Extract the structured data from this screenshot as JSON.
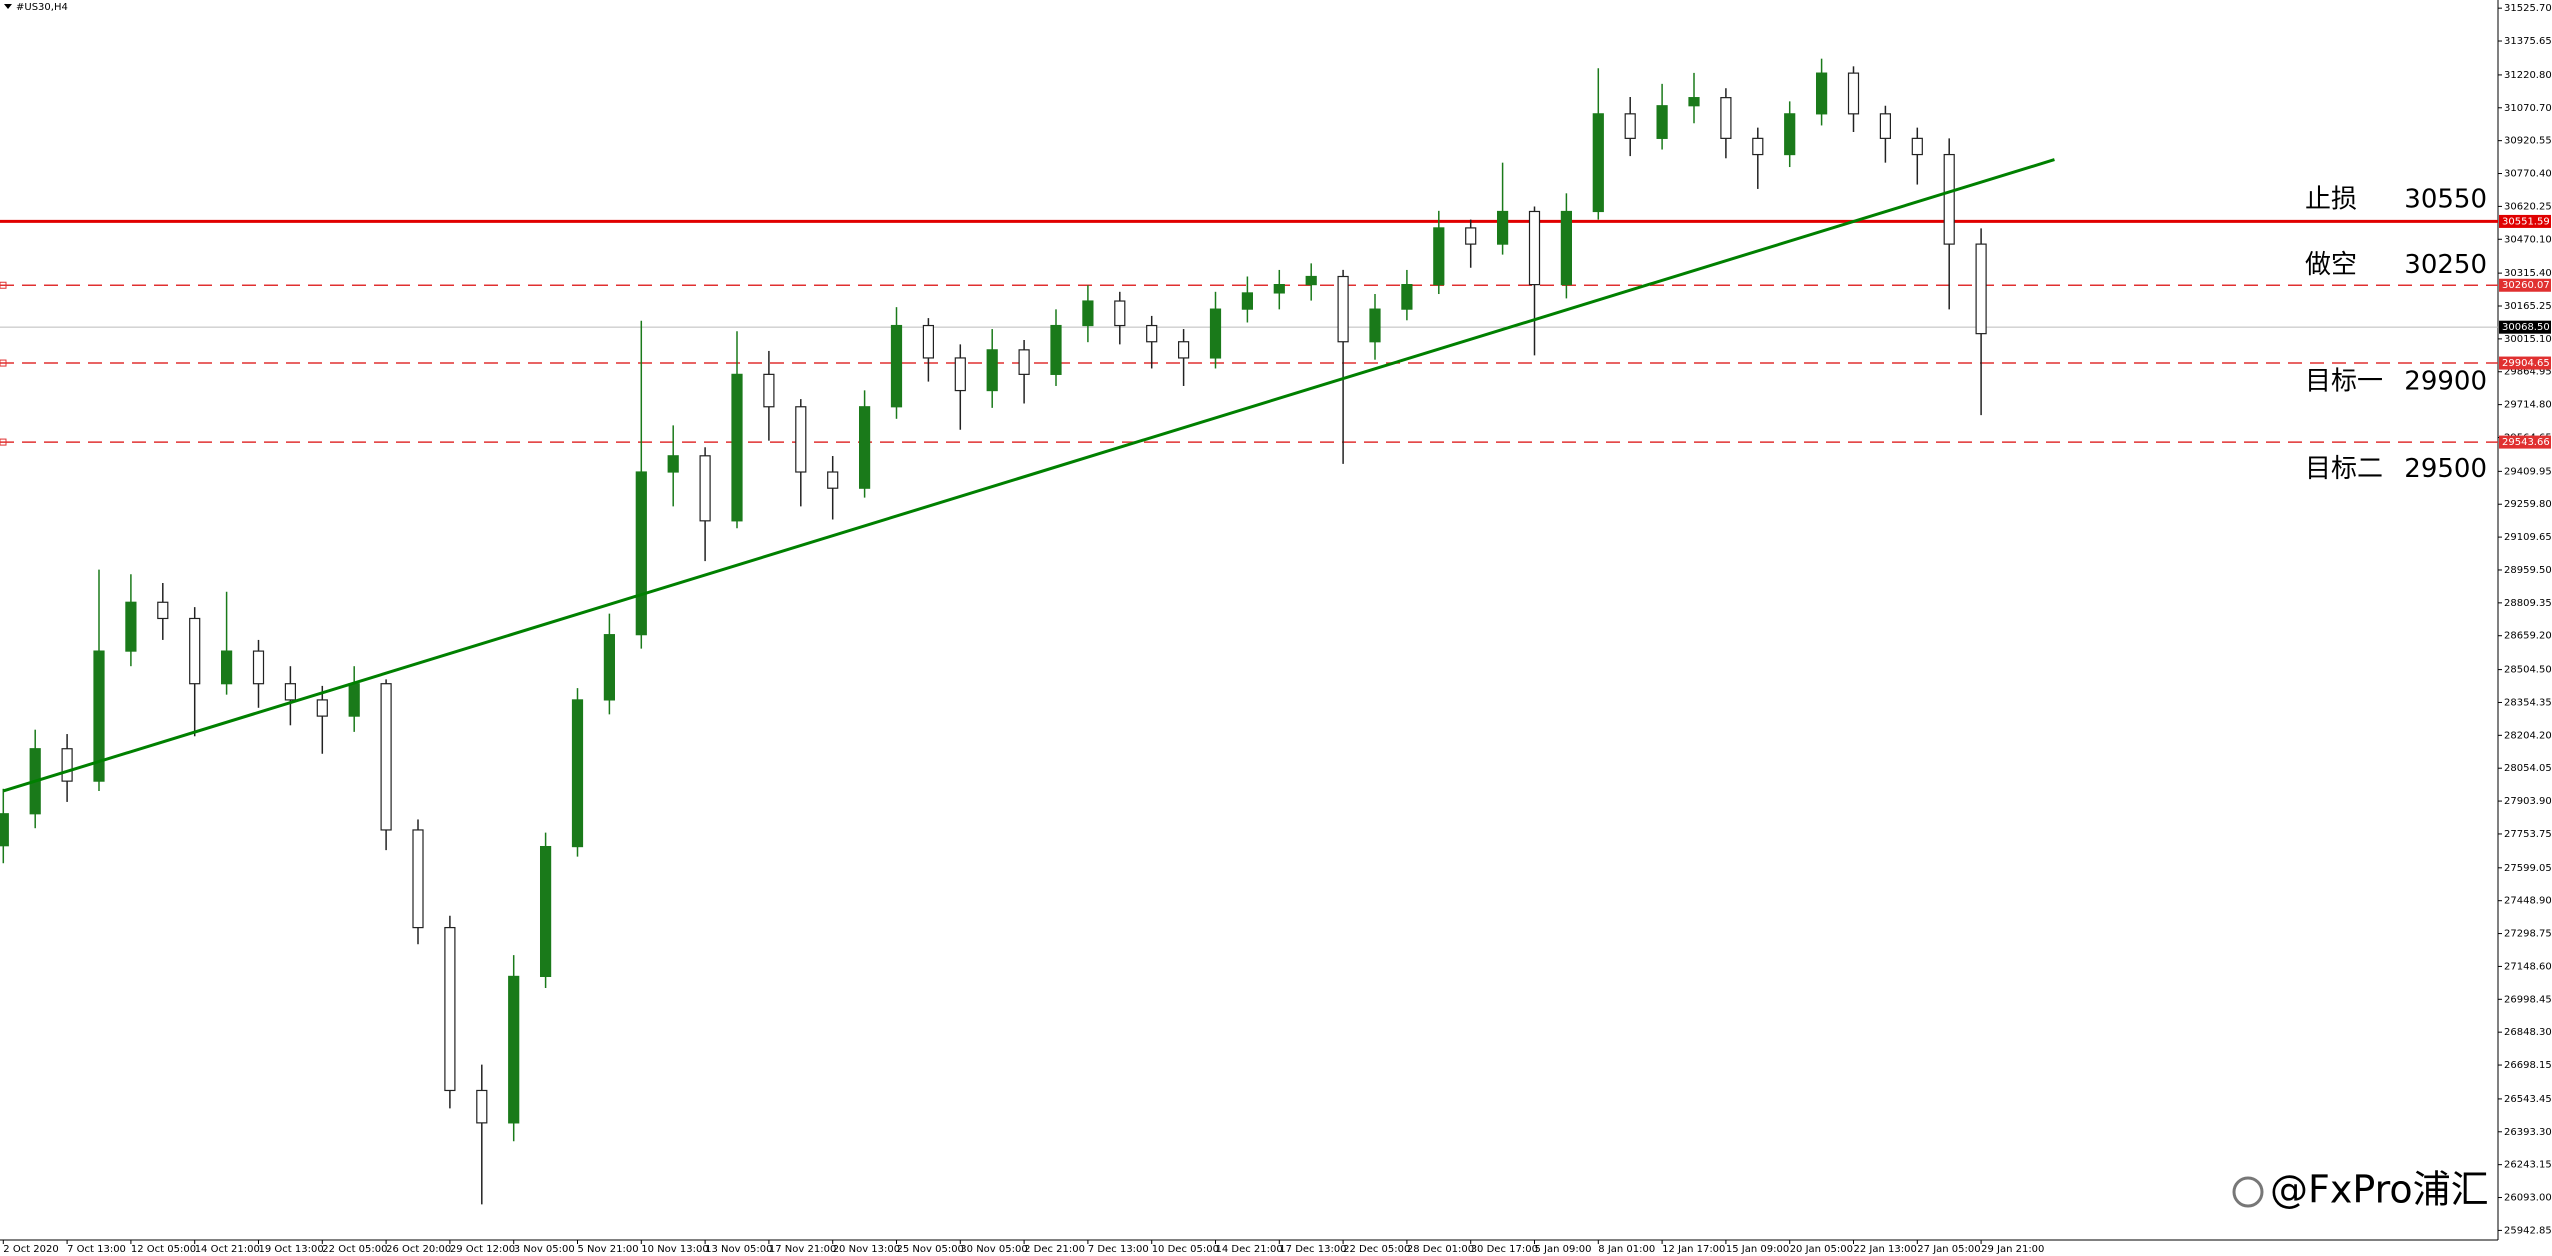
{
  "chart_data": {
    "type": "candlestick",
    "title": "#US30,H4",
    "watermark": "@FxPro浦汇",
    "up_color": "#1a7a1a",
    "down_color": "#222222",
    "categories": [
      "2 Oct 2020",
      null,
      "7 Oct 13:00",
      null,
      "12 Oct 05:00",
      null,
      "14 Oct 21:00",
      null,
      "19 Oct 13:00",
      null,
      "22 Oct 05:00",
      null,
      "26 Oct 20:00",
      null,
      "29 Oct 12:00",
      null,
      "3 Nov 05:00",
      null,
      "5 Nov 21:00",
      null,
      "10 Nov 13:00",
      null,
      "13 Nov 05:00",
      null,
      "17 Nov 21:00",
      null,
      "20 Nov 13:00",
      null,
      "25 Nov 05:00",
      null,
      "30 Nov 05:00",
      null,
      "2 Dec 21:00",
      null,
      "7 Dec 13:00",
      null,
      "10 Dec 05:00",
      null,
      "14 Dec 21:00",
      null,
      "17 Dec 13:00",
      null,
      "22 Dec 05:00",
      null,
      "28 Dec 01:00",
      null,
      "30 Dec 17:00",
      null,
      "5 Jan 09:00",
      null,
      "8 Jan 01:00",
      null,
      "12 Jan 17:00",
      null,
      "15 Jan 09:00",
      null,
      "20 Jan 05:00",
      null,
      "22 Jan 13:00",
      null,
      "27 Jan 05:00",
      null,
      "29 Jan 21:00"
    ],
    "open": [
      27700,
      27846,
      28143,
      27995,
      28589,
      28812,
      28738,
      28440,
      28589,
      28440,
      28366,
      28292,
      28440,
      27772,
      27326,
      26582,
      26434,
      27103,
      27696,
      28366,
      28664,
      29407,
      29481,
      29184,
      29853,
      29705,
      29407,
      29333,
      29705,
      30076,
      29928,
      29779,
      29965,
      29853,
      30076,
      30188,
      30076,
      30002,
      29928,
      30151,
      30225,
      30263,
      30300,
      30002,
      30151,
      30263,
      30522,
      30448,
      30597,
      30263,
      30597,
      31043,
      30931,
      31080,
      31117,
      30931,
      30857,
      31043,
      31229,
      31043,
      30931,
      30857,
      30448
    ],
    "high": [
      27960,
      28230,
      28210,
      28961,
      28940,
      28900,
      28790,
      28860,
      28640,
      28520,
      28430,
      28520,
      28460,
      27820,
      27380,
      26700,
      27200,
      27760,
      28420,
      28760,
      30098,
      29620,
      29520,
      30050,
      29960,
      29740,
      29480,
      29780,
      30160,
      30110,
      29990,
      30060,
      30010,
      30150,
      30260,
      30230,
      30120,
      30060,
      30230,
      30300,
      30330,
      30360,
      30330,
      30220,
      30330,
      30600,
      30560,
      30820,
      30620,
      30680,
      31251,
      31120,
      31180,
      31230,
      31160,
      30980,
      31100,
      31295,
      31260,
      31080,
      30980,
      30931,
      30520
    ],
    "low": [
      27620,
      27780,
      27900,
      27950,
      28520,
      28640,
      28200,
      28390,
      28330,
      28250,
      28120,
      28220,
      27680,
      27250,
      26500,
      26062,
      26350,
      27050,
      27650,
      28300,
      28600,
      29250,
      29000,
      29150,
      29550,
      29250,
      29190,
      29290,
      29650,
      29820,
      29600,
      29700,
      29720,
      29800,
      30000,
      29990,
      29880,
      29800,
      29880,
      30090,
      30150,
      30190,
      29444,
      29920,
      30100,
      30220,
      30340,
      30400,
      29940,
      30200,
      30560,
      30850,
      30880,
      31000,
      30840,
      30700,
      30800,
      30990,
      30960,
      30820,
      30720,
      30150,
      29667
    ],
    "close": [
      27846,
      28143,
      27995,
      28589,
      28812,
      28738,
      28440,
      28589,
      28440,
      28366,
      28292,
      28440,
      27772,
      27326,
      26582,
      26434,
      27103,
      27696,
      28366,
      28664,
      29407,
      29481,
      29184,
      29853,
      29705,
      29407,
      29333,
      29705,
      30076,
      29928,
      29779,
      29965,
      29853,
      30076,
      30188,
      30076,
      30002,
      29928,
      30151,
      30225,
      30263,
      30300,
      30002,
      30151,
      30263,
      30522,
      30448,
      30597,
      30263,
      30597,
      31043,
      30931,
      31080,
      31117,
      30931,
      30857,
      31043,
      31229,
      31043,
      30931,
      30857,
      30448,
      30039
    ],
    "ylim": [
      25899,
      31563
    ],
    "yticks": [
      {
        "value": 31525.7,
        "label": "31525.70"
      },
      {
        "value": 31375.65,
        "label": "31375.65"
      },
      {
        "value": 31220.8,
        "label": "31220.80"
      },
      {
        "value": 31070.7,
        "label": "31070.70"
      },
      {
        "value": 30920.55,
        "label": "30920.55"
      },
      {
        "value": 30770.4,
        "label": "30770.40"
      },
      {
        "value": 30620.25,
        "label": "30620.25"
      },
      {
        "value": 30470.1,
        "label": "30470.10"
      },
      {
        "value": 30315.4,
        "label": "30315.40"
      },
      {
        "value": 30165.25,
        "label": "30165.25"
      },
      {
        "value": 30015.1,
        "label": "30015.10"
      },
      {
        "value": 29864.95,
        "label": "29864.95"
      },
      {
        "value": 29714.8,
        "label": "29714.80"
      },
      {
        "value": 29564.65,
        "label": "29564.65"
      },
      {
        "value": 29409.95,
        "label": "29409.95"
      },
      {
        "value": 29259.8,
        "label": "29259.80"
      },
      {
        "value": 29109.65,
        "label": "29109.65"
      },
      {
        "value": 28959.5,
        "label": "28959.50"
      },
      {
        "value": 28809.35,
        "label": "28809.35"
      },
      {
        "value": 28659.2,
        "label": "28659.20"
      },
      {
        "value": 28504.5,
        "label": "28504.50"
      },
      {
        "value": 28354.35,
        "label": "28354.35"
      },
      {
        "value": 28204.2,
        "label": "28204.20"
      },
      {
        "value": 28054.05,
        "label": "28054.05"
      },
      {
        "value": 27903.9,
        "label": "27903.90"
      },
      {
        "value": 27753.75,
        "label": "27753.75"
      },
      {
        "value": 27599.05,
        "label": "27599.05"
      },
      {
        "value": 27448.9,
        "label": "27448.90"
      },
      {
        "value": 27298.75,
        "label": "27298.75"
      },
      {
        "value": 27148.6,
        "label": "27148.60"
      },
      {
        "value": 26998.45,
        "label": "26998.45"
      },
      {
        "value": 26848.3,
        "label": "26848.30"
      },
      {
        "value": 26698.15,
        "label": "26698.15"
      },
      {
        "value": 26543.45,
        "label": "26543.45"
      },
      {
        "value": 26393.3,
        "label": "26393.30"
      },
      {
        "value": 26243.15,
        "label": "26243.15"
      },
      {
        "value": 26093,
        "label": "26093.00"
      },
      {
        "value": 25942.85,
        "label": "25942.85"
      }
    ],
    "levels": [
      {
        "value": 30551.59,
        "color": "#e00000",
        "style": "solid"
      },
      {
        "value": 30260.07,
        "color": "#e03030",
        "style": "dashed"
      },
      {
        "value": 30068.5,
        "label": "30068.50",
        "color": "#000000",
        "style": "current"
      },
      {
        "value": 29904.65,
        "color": "#e03030",
        "style": "dashed"
      },
      {
        "value": 29543.66,
        "color": "#e03030",
        "style": "dashed"
      }
    ],
    "trendline": {
      "color": "#008000",
      "x": [
        0,
        64.3
      ],
      "y": [
        27950,
        30834
      ]
    },
    "annotations": [
      {
        "label": "止损",
        "value": 30550
      },
      {
        "label": "做空",
        "value": 30250
      },
      {
        "label": "目标一",
        "value": 29900
      },
      {
        "label": "目标二",
        "value": 29500
      }
    ]
  }
}
